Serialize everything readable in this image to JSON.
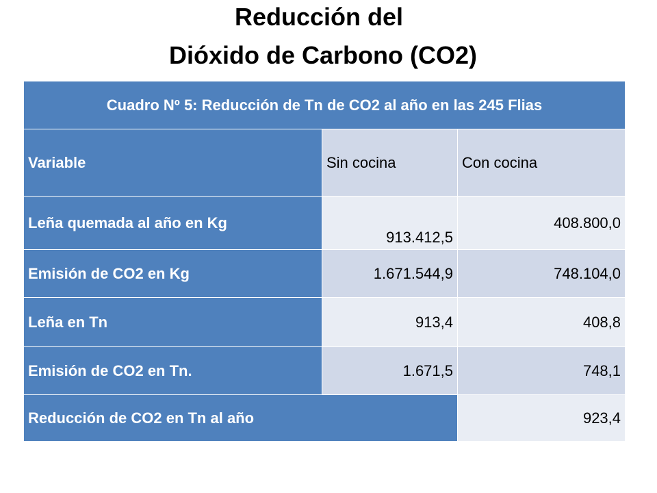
{
  "title": {
    "line1": "Reducción del",
    "line2": "Dióxido de Carbono (CO2)"
  },
  "table": {
    "caption": "Cuadro Nº 5: Reducción de Tn de CO2 al año en las 245 Flias",
    "headers": [
      "Variable",
      "Sin cocina",
      "Con cocina"
    ],
    "rows": [
      {
        "label": "Leña quemada al año en Kg",
        "sin": "913.412,5",
        "con": "408.800,0"
      },
      {
        "label": "Emisión de CO2 en Kg",
        "sin": "1.671.544,9",
        "con": "748.104,0"
      },
      {
        "label": "Leña en Tn",
        "sin": "913,4",
        "con": "408,8"
      },
      {
        "label": "Emisión de CO2 en Tn.",
        "sin": "1.671,5",
        "con": "748,1"
      }
    ],
    "total": {
      "label": "Reducción de CO2 en Tn al año",
      "value": "923,4"
    }
  },
  "colors": {
    "header_blue": "#4f81bd",
    "band_dark": "#d0d8e8",
    "band_light": "#e9edf4"
  }
}
